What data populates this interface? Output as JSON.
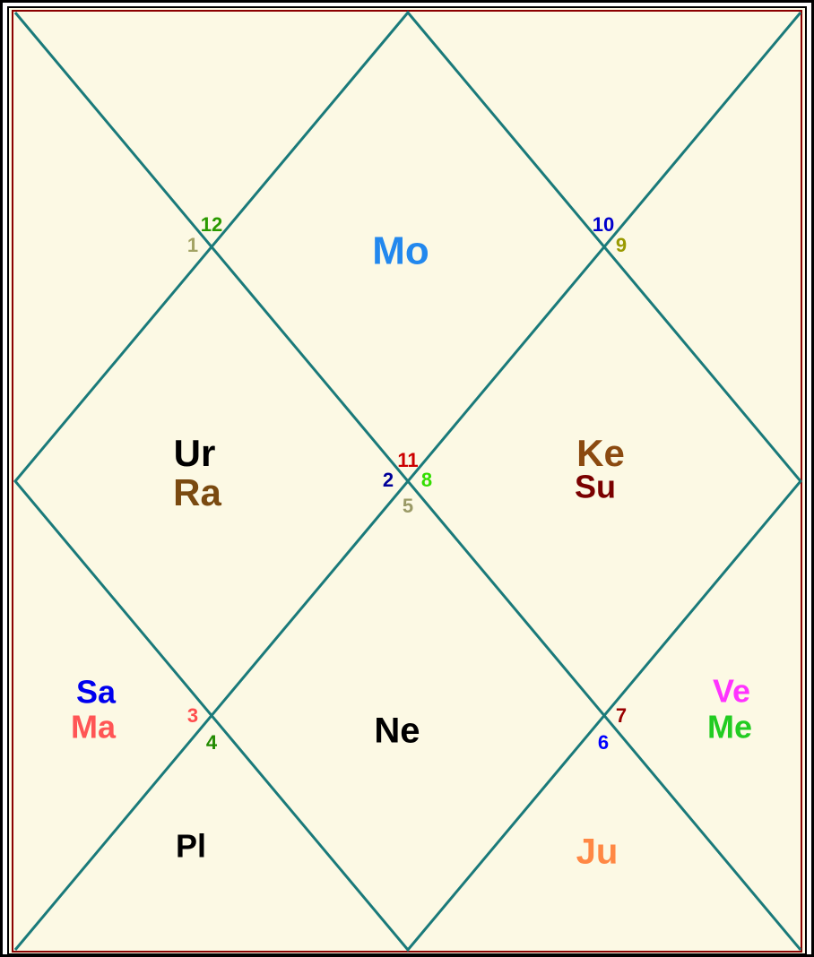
{
  "houses": [
    {
      "label": "1",
      "color": "#a3a364"
    },
    {
      "label": "2",
      "color": "#000099"
    },
    {
      "label": "3",
      "color": "#ff4d4d"
    },
    {
      "label": "4",
      "color": "#228b00"
    },
    {
      "label": "5",
      "color": "#9a9a66"
    },
    {
      "label": "6",
      "color": "#0000ff"
    },
    {
      "label": "7",
      "color": "#990000"
    },
    {
      "label": "8",
      "color": "#33dd00"
    },
    {
      "label": "9",
      "color": "#999900"
    },
    {
      "label": "10",
      "color": "#0000cc"
    },
    {
      "label": "11",
      "color": "#cc0000"
    },
    {
      "label": "12",
      "color": "#2a9a00"
    }
  ],
  "planets": [
    {
      "label": "Mo",
      "color": "#2288ee"
    },
    {
      "label": "Ur",
      "color": "#000000"
    },
    {
      "label": "Ra",
      "color": "#7a4a10"
    },
    {
      "label": "Ke",
      "color": "#8b4a10"
    },
    {
      "label": "Su",
      "color": "#7a0000"
    },
    {
      "label": "Sa",
      "color": "#0000ee"
    },
    {
      "label": "Ma",
      "color": "#ff5555"
    },
    {
      "label": "Ne",
      "color": "#000000"
    },
    {
      "label": "Ve",
      "color": "#ff33ff"
    },
    {
      "label": "Me",
      "color": "#22cc22"
    },
    {
      "label": "Pl",
      "color": "#000000"
    },
    {
      "label": "Ju",
      "color": "#ff8844"
    }
  ]
}
